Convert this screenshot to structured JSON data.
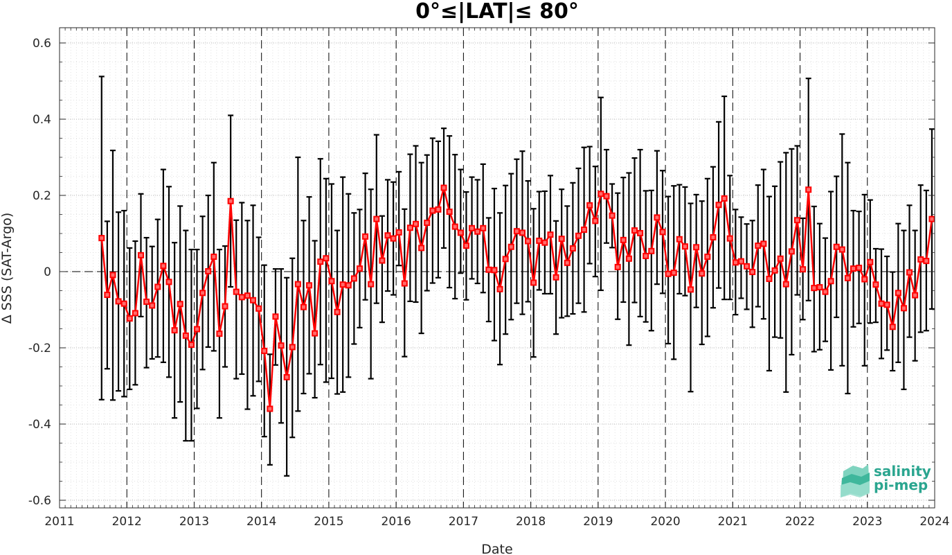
{
  "chart_data": {
    "type": "line",
    "title": "0°≤|LAT|≤ 80°",
    "xlabel": "Date",
    "ylabel": "Δ SSS (SAT-Argo)",
    "xlim": [
      2011,
      2024
    ],
    "ylim": [
      -0.62,
      0.64
    ],
    "x_ticks": [
      "2011",
      "2012",
      "2013",
      "2014",
      "2015",
      "2016",
      "2017",
      "2018",
      "2019",
      "2020",
      "2021",
      "2022",
      "2023",
      "2024"
    ],
    "y_ticks": [
      {
        "value": -0.6,
        "label": "-0.6"
      },
      {
        "value": -0.4,
        "label": "-0.4"
      },
      {
        "value": -0.2,
        "label": "-0.2"
      },
      {
        "value": 0,
        "label": "0"
      },
      {
        "value": 0.2,
        "label": "0.2"
      },
      {
        "value": 0.4,
        "label": "0.4"
      },
      {
        "value": 0.6,
        "label": "0.6"
      }
    ],
    "grid": true,
    "year_lines": "dashed",
    "zero_line": "dashed",
    "series": [
      {
        "color": "#ff0000",
        "marker": "square",
        "errorbar_color": "#000000",
        "start_date": "2011-08",
        "step": "1 month",
        "values": [
          0.088,
          -0.061,
          -0.009,
          -0.078,
          -0.084,
          -0.123,
          -0.109,
          0.043,
          -0.079,
          -0.089,
          -0.04,
          0.015,
          -0.027,
          -0.154,
          -0.085,
          -0.168,
          -0.192,
          -0.151,
          -0.056,
          0.001,
          0.039,
          -0.163,
          -0.091,
          0.185,
          -0.053,
          -0.067,
          -0.063,
          -0.075,
          -0.097,
          -0.208,
          -0.36,
          -0.118,
          -0.194,
          -0.277,
          -0.198,
          -0.033,
          -0.093,
          -0.036,
          -0.162,
          0.026,
          0.035,
          -0.025,
          -0.106,
          -0.034,
          -0.036,
          -0.018,
          0.008,
          0.092,
          -0.033,
          0.138,
          0.029,
          0.095,
          0.087,
          0.103,
          -0.031,
          0.115,
          0.125,
          0.062,
          0.128,
          0.16,
          0.163,
          0.22,
          0.157,
          0.118,
          0.102,
          0.068,
          0.114,
          0.105,
          0.114,
          0.005,
          0.004,
          -0.046,
          0.033,
          0.065,
          0.106,
          0.102,
          0.08,
          -0.029,
          0.081,
          0.076,
          0.097,
          -0.015,
          0.086,
          0.023,
          0.061,
          0.094,
          0.11,
          0.174,
          0.133,
          0.204,
          0.198,
          0.147,
          0.012,
          0.083,
          0.034,
          0.108,
          0.101,
          0.041,
          0.054,
          0.142,
          0.104,
          -0.006,
          -0.003,
          0.085,
          0.066,
          -0.047,
          0.064,
          -0.005,
          0.039,
          0.09,
          0.175,
          0.192,
          0.087,
          0.024,
          0.027,
          0.014,
          -0.001,
          0.068,
          0.073,
          -0.019,
          0.003,
          0.034,
          -0.033,
          0.053,
          0.135,
          0.006,
          0.215,
          -0.043,
          -0.041,
          -0.053,
          -0.025,
          0.065,
          0.058,
          -0.017,
          0.008,
          0.01,
          -0.02,
          0.025,
          -0.034,
          -0.084,
          -0.087,
          -0.145,
          -0.056,
          -0.096,
          -0.002,
          -0.062,
          0.032,
          0.028,
          0.138
        ],
        "upper": [
          0.512,
          0.132,
          0.318,
          0.156,
          0.16,
          0.062,
          0.08,
          0.204,
          0.089,
          0.066,
          0.137,
          0.268,
          0.223,
          0.076,
          0.172,
          0.108,
          0.058,
          0.058,
          0.145,
          0.2,
          0.286,
          0.058,
          0.067,
          0.41,
          0.135,
          0.181,
          0.134,
          0.174,
          0.09,
          0.017,
          -0.217,
          0.007,
          0.007,
          -0.016,
          0.035,
          0.3,
          0.134,
          0.196,
          0.081,
          0.296,
          0.244,
          0.23,
          0.108,
          0.248,
          0.204,
          0.154,
          0.163,
          0.258,
          0.216,
          0.359,
          0.146,
          0.241,
          0.235,
          0.262,
          0.164,
          0.308,
          0.33,
          0.286,
          0.306,
          0.35,
          0.342,
          0.376,
          0.356,
          0.307,
          0.268,
          0.209,
          0.248,
          0.241,
          0.282,
          0.141,
          0.218,
          0.154,
          0.226,
          0.257,
          0.295,
          0.316,
          0.238,
          0.165,
          0.21,
          0.211,
          0.252,
          0.133,
          0.216,
          0.172,
          0.233,
          0.271,
          0.326,
          0.328,
          0.276,
          0.457,
          0.32,
          0.23,
          0.206,
          0.247,
          0.259,
          0.298,
          0.32,
          0.212,
          0.213,
          0.317,
          0.265,
          0.197,
          0.225,
          0.228,
          0.222,
          0.179,
          0.202,
          0.185,
          0.244,
          0.275,
          0.393,
          0.46,
          0.252,
          0.163,
          0.143,
          0.125,
          0.134,
          0.227,
          0.268,
          0.197,
          0.224,
          0.288,
          0.312,
          0.322,
          0.33,
          0.14,
          0.507,
          0.171,
          0.126,
          0.088,
          0.21,
          0.25,
          0.361,
          0.286,
          0.16,
          0.158,
          0.202,
          0.188,
          0.06,
          0.059,
          0.04,
          -0.001,
          0.126,
          0.108,
          0.174,
          0.108,
          0.227,
          0.213,
          0.374
        ],
        "lower": [
          -0.336,
          -0.255,
          -0.337,
          -0.313,
          -0.328,
          -0.309,
          -0.297,
          -0.118,
          -0.252,
          -0.229,
          -0.224,
          -0.238,
          -0.277,
          -0.384,
          -0.342,
          -0.444,
          -0.444,
          -0.359,
          -0.257,
          -0.198,
          -0.208,
          -0.384,
          -0.25,
          -0.04,
          -0.281,
          -0.269,
          -0.361,
          -0.326,
          -0.288,
          -0.433,
          -0.507,
          -0.245,
          -0.397,
          -0.536,
          -0.435,
          -0.366,
          -0.32,
          -0.268,
          -0.331,
          -0.244,
          -0.29,
          -0.28,
          -0.321,
          -0.316,
          -0.277,
          -0.19,
          -0.147,
          -0.074,
          -0.281,
          -0.083,
          -0.133,
          -0.051,
          -0.061,
          0.016,
          -0.223,
          -0.078,
          -0.08,
          -0.162,
          -0.05,
          -0.03,
          -0.016,
          0.062,
          -0.042,
          -0.071,
          -0.004,
          -0.074,
          -0.019,
          -0.031,
          -0.055,
          -0.131,
          -0.181,
          -0.244,
          -0.164,
          -0.126,
          -0.083,
          -0.112,
          -0.079,
          -0.224,
          -0.048,
          -0.058,
          -0.058,
          -0.164,
          -0.121,
          -0.117,
          -0.111,
          -0.083,
          -0.106,
          0.021,
          -0.013,
          -0.049,
          0.075,
          0.063,
          -0.125,
          -0.08,
          -0.193,
          -0.081,
          -0.118,
          -0.132,
          -0.155,
          -0.033,
          -0.057,
          -0.189,
          -0.23,
          -0.058,
          -0.063,
          -0.315,
          -0.094,
          -0.191,
          -0.17,
          -0.095,
          -0.043,
          -0.073,
          -0.073,
          -0.113,
          -0.07,
          -0.099,
          -0.146,
          -0.092,
          -0.124,
          -0.26,
          -0.172,
          -0.174,
          -0.316,
          -0.218,
          -0.061,
          -0.126,
          -0.076,
          -0.21,
          -0.205,
          -0.183,
          -0.258,
          -0.12,
          -0.247,
          -0.32,
          -0.145,
          -0.136,
          -0.247,
          -0.135,
          -0.133,
          -0.228,
          -0.206,
          -0.26,
          -0.238,
          -0.309,
          -0.172,
          -0.234,
          -0.159,
          -0.155,
          -0.098
        ]
      }
    ]
  },
  "logo": {
    "line1": "salinity",
    "line2": "pi-mep",
    "color": "#2aa58f"
  }
}
